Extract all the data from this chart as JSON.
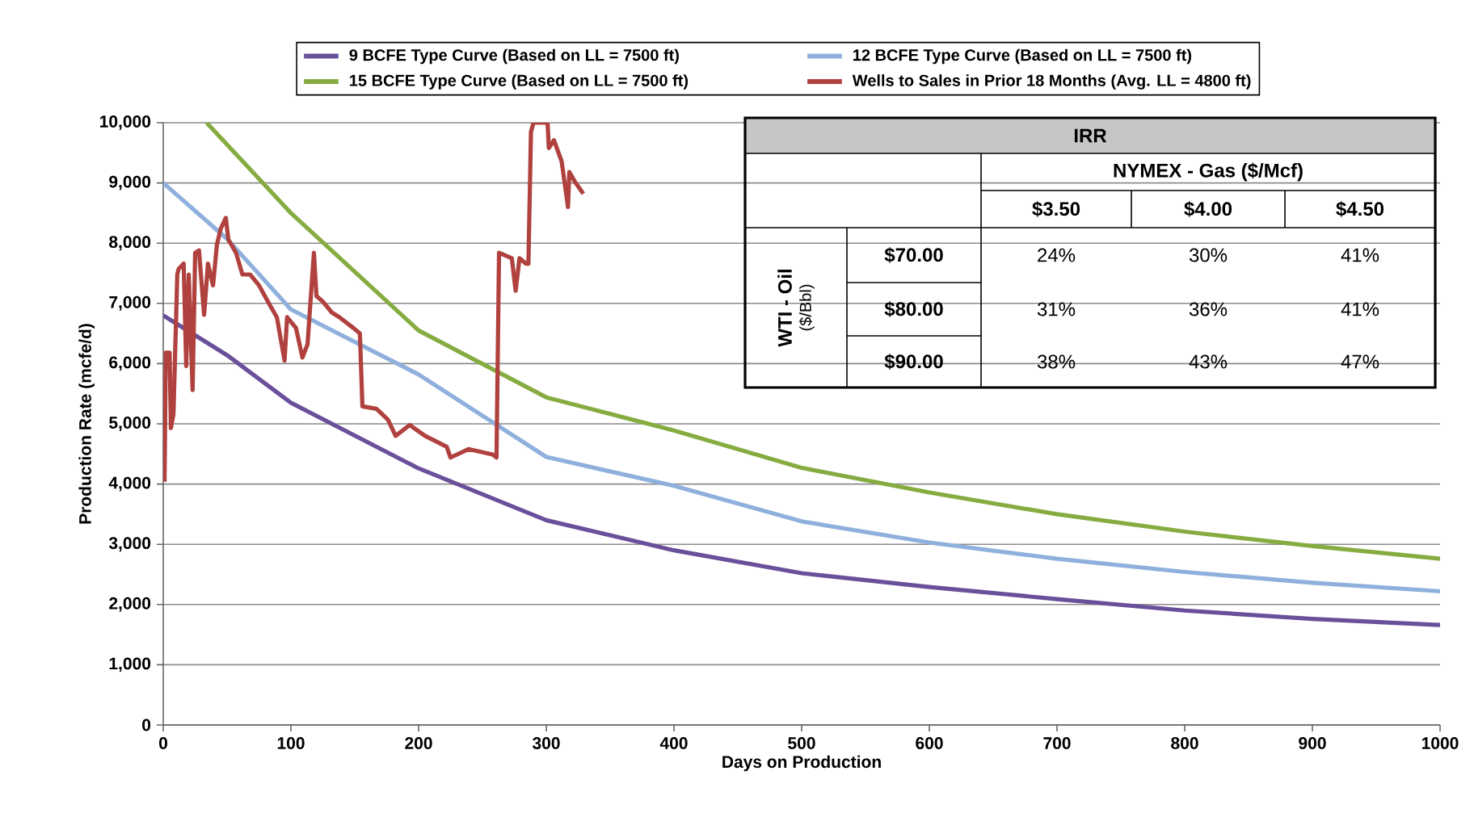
{
  "chart_data": [
    {
      "type": "line",
      "xlabel": "Days on Production",
      "ylabel": "Production Rate (mcfe/d)",
      "xlim": [
        0,
        1000
      ],
      "ylim": [
        0,
        10000
      ],
      "xticks": [
        0,
        100,
        200,
        300,
        400,
        500,
        600,
        700,
        800,
        900,
        1000
      ],
      "yticks": [
        {
          "value": 0,
          "label": "0"
        },
        {
          "value": 1000,
          "label": "1,000"
        },
        {
          "value": 2000,
          "label": "2,000"
        },
        {
          "value": 3000,
          "label": "3,000"
        },
        {
          "value": 4000,
          "label": "4,000"
        },
        {
          "value": 5000,
          "label": "5,000"
        },
        {
          "value": 6000,
          "label": "6,000"
        },
        {
          "value": 7000,
          "label": "7,000"
        },
        {
          "value": 8000,
          "label": "8,000"
        },
        {
          "value": 9000,
          "label": "9,000"
        },
        {
          "value": 10000,
          "label": "10,000"
        }
      ],
      "grid": "y",
      "legend": "top",
      "marker": "none",
      "line_style": "solid",
      "series": [
        {
          "name": "9 BCFE Type Curve (Based on LL = 7500 ft)",
          "color": "#6a4f9a",
          "x": [
            0,
            50,
            100,
            200,
            300,
            400,
            500,
            600,
            700,
            800,
            900,
            1000
          ],
          "values": [
            6800,
            6140,
            5350,
            4260,
            3400,
            2900,
            2520,
            2290,
            2090,
            1900,
            1760,
            1660
          ]
        },
        {
          "name": "12 BCFE Type Curve (Based on LL = 7500 ft)",
          "color": "#8fb0dc",
          "x": [
            0,
            50,
            100,
            200,
            300,
            400,
            500,
            600,
            700,
            800,
            900,
            1000
          ],
          "values": [
            9000,
            8070,
            6900,
            5820,
            4450,
            3970,
            3380,
            3030,
            2760,
            2540,
            2360,
            2220
          ]
        },
        {
          "name": "15 BCFE Type Curve (Based on LL = 7500 ft)",
          "color": "#86ac41",
          "x": [
            34,
            100,
            200,
            300,
            400,
            500,
            600,
            700,
            800,
            900,
            1000
          ],
          "values": [
            10000,
            8500,
            6550,
            5440,
            4890,
            4270,
            3860,
            3500,
            3210,
            2970,
            2760
          ]
        },
        {
          "name": "Wells to Sales in Prior 18 Months (Avg. LL = 4800 ft)",
          "color": "#b0413e",
          "x": [
            1,
            2,
            5,
            6,
            8,
            11,
            12,
            16,
            18,
            20,
            23,
            25,
            28,
            30,
            32,
            35,
            39,
            42,
            45,
            49,
            51,
            57,
            62,
            68,
            75,
            83,
            89,
            95,
            97,
            104,
            109,
            113,
            118,
            120,
            125,
            132,
            138,
            149,
            154,
            156,
            167,
            176,
            182,
            193,
            205,
            222,
            225,
            239,
            258,
            261,
            263,
            273,
            276,
            279,
            284,
            286,
            288,
            290,
            301,
            302,
            306,
            312,
            317,
            318,
            323,
            329
          ],
          "values": [
            4040,
            6180,
            6180,
            4930,
            5160,
            7480,
            7570,
            7660,
            5960,
            7480,
            5560,
            7840,
            7880,
            7350,
            6810,
            7660,
            7300,
            7970,
            8240,
            8420,
            8060,
            7840,
            7480,
            7480,
            7300,
            6990,
            6770,
            6050,
            6770,
            6590,
            6100,
            6320,
            7840,
            7120,
            7030,
            6850,
            6770,
            6590,
            6500,
            5290,
            5250,
            5070,
            4800,
            4980,
            4800,
            4620,
            4440,
            4580,
            4490,
            4440,
            7840,
            7750,
            7210,
            7750,
            7660,
            7660,
            9850,
            10000,
            10000,
            9580,
            9710,
            9360,
            8600,
            9180,
            9000,
            8820
          ]
        }
      ]
    },
    {
      "type": "other",
      "title": "IRR",
      "annotations": [
        "NYMEX - Gas ($/Mcf)",
        "$3.50",
        "$4.00",
        "$4.50",
        "WTI - Oil",
        "($/Bbl)",
        "$70.00",
        "$80.00",
        "$90.00",
        "24%",
        "30%",
        "41%",
        "31%",
        "36%",
        "41%",
        "38%",
        "43%",
        "47%"
      ]
    }
  ]
}
